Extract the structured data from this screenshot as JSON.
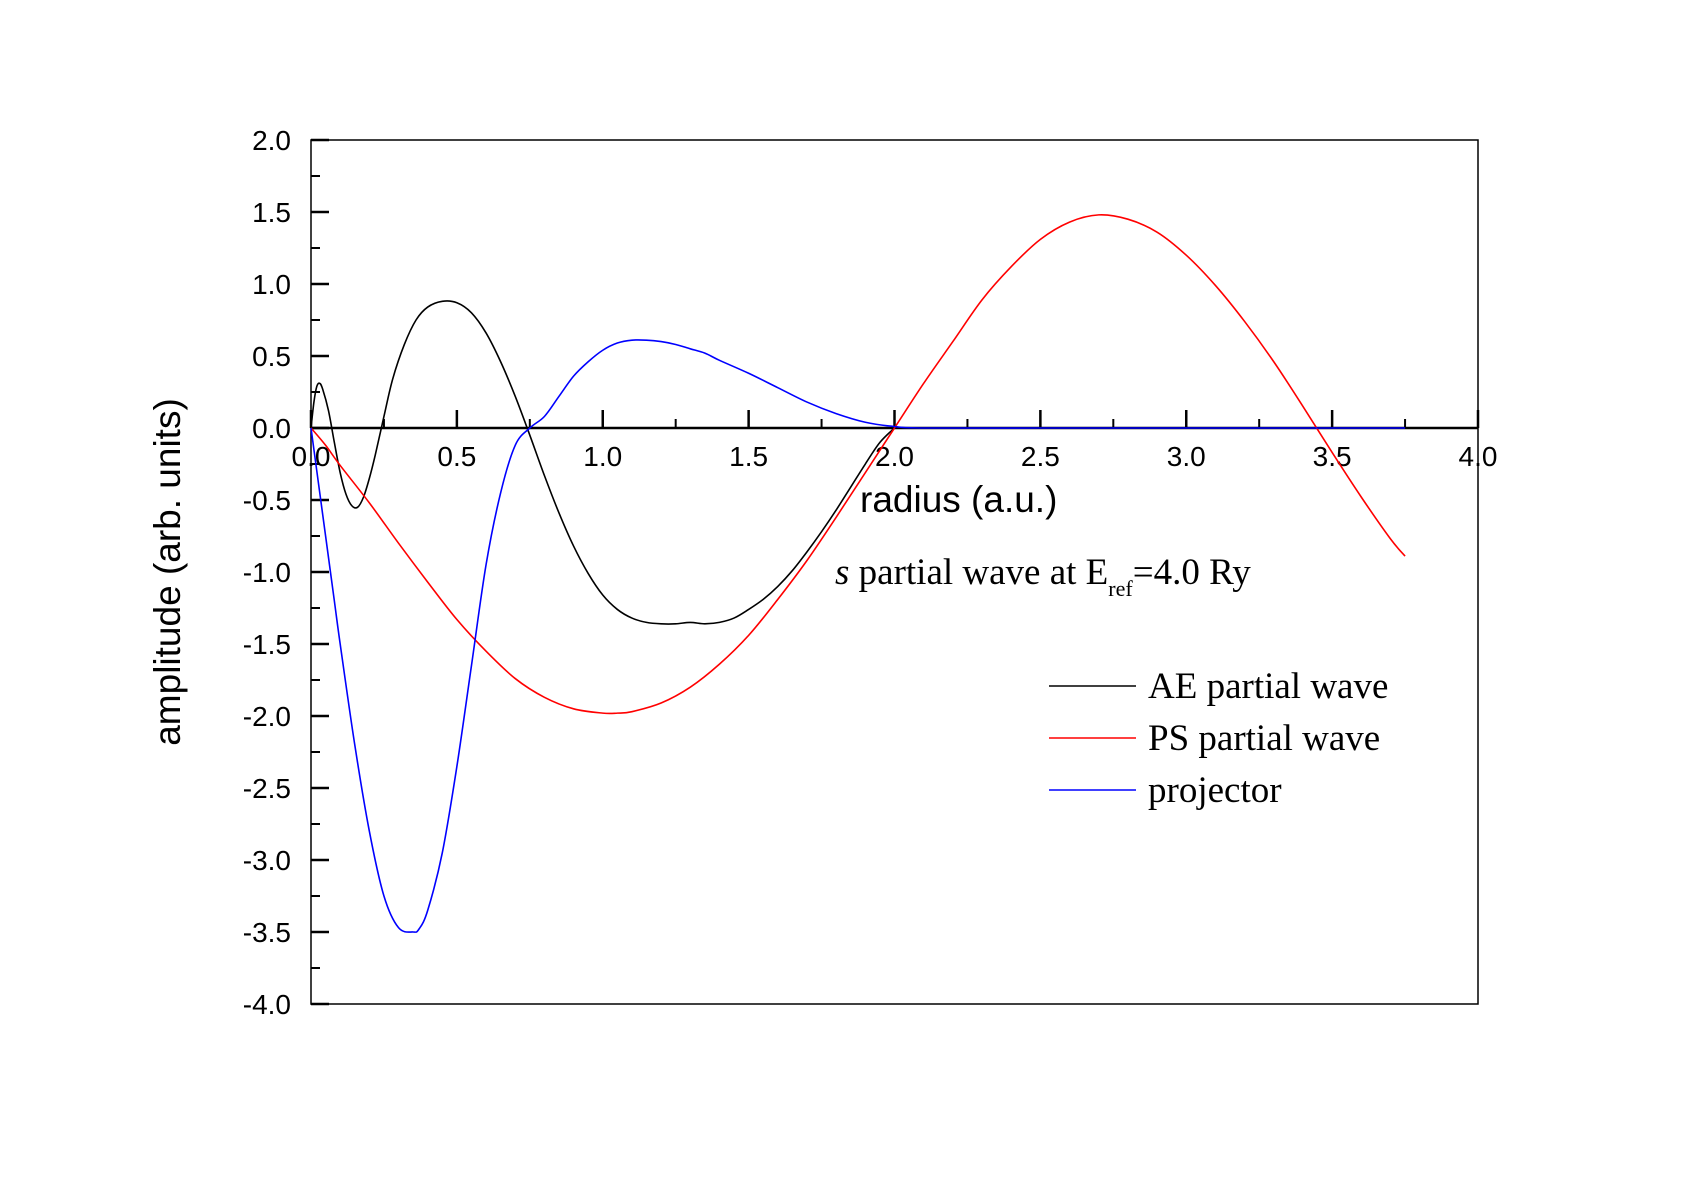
{
  "chart_data": {
    "type": "line",
    "xlabel": "radius (a.u.)",
    "ylabel": "amplitude (arb. units)",
    "xlim": [
      0.0,
      4.0
    ],
    "ylim": [
      -4.0,
      2.0
    ],
    "x_ticks": [
      "0.0",
      "0.5",
      "1.0",
      "1.5",
      "2.0",
      "2.5",
      "3.0",
      "3.5",
      "4.0"
    ],
    "y_ticks": [
      "2.0",
      "1.5",
      "1.0",
      "0.5",
      "0.0",
      "-0.5",
      "-1.0",
      "-1.5",
      "-2.0",
      "-2.5",
      "-3.0",
      "-3.5",
      "-4.0"
    ],
    "grid": false,
    "legend_position": "right",
    "annotation": {
      "prefix": "s",
      "text": " partial wave at E",
      "subscript": "ref",
      "suffix": "=4.0 Ry"
    },
    "series": [
      {
        "name": "AE partial wave",
        "color": "#000000",
        "x": [
          0.0,
          0.01,
          0.02,
          0.03,
          0.04,
          0.06,
          0.08,
          0.1,
          0.12,
          0.14,
          0.16,
          0.18,
          0.2,
          0.22,
          0.25,
          0.28,
          0.32,
          0.36,
          0.4,
          0.45,
          0.5,
          0.55,
          0.6,
          0.65,
          0.7,
          0.75,
          0.8,
          0.85,
          0.9,
          0.95,
          1.0,
          1.05,
          1.1,
          1.15,
          1.2,
          1.25,
          1.3,
          1.35,
          1.4,
          1.45,
          1.5,
          1.55,
          1.6,
          1.65,
          1.7,
          1.75,
          1.8,
          1.85,
          1.9,
          1.95,
          2.0
        ],
        "y": [
          0.0,
          0.18,
          0.29,
          0.31,
          0.27,
          0.12,
          -0.1,
          -0.31,
          -0.46,
          -0.54,
          -0.55,
          -0.48,
          -0.35,
          -0.19,
          0.08,
          0.34,
          0.58,
          0.75,
          0.84,
          0.88,
          0.87,
          0.8,
          0.66,
          0.46,
          0.22,
          -0.05,
          -0.33,
          -0.59,
          -0.82,
          -1.01,
          -1.16,
          -1.26,
          -1.32,
          -1.35,
          -1.36,
          -1.36,
          -1.35,
          -1.36,
          -1.35,
          -1.32,
          -1.26,
          -1.19,
          -1.1,
          -0.99,
          -0.86,
          -0.72,
          -0.57,
          -0.41,
          -0.25,
          -0.1,
          0.0
        ]
      },
      {
        "name": "PS partial wave",
        "color": "#ff0000",
        "x": [
          0.0,
          0.05,
          0.1,
          0.2,
          0.3,
          0.4,
          0.5,
          0.6,
          0.7,
          0.8,
          0.9,
          1.0,
          1.05,
          1.1,
          1.2,
          1.3,
          1.4,
          1.5,
          1.6,
          1.7,
          1.8,
          1.9,
          2.0,
          2.1,
          2.2,
          2.3,
          2.4,
          2.5,
          2.6,
          2.7,
          2.8,
          2.9,
          3.0,
          3.1,
          3.2,
          3.3,
          3.4,
          3.5,
          3.6,
          3.7,
          3.75
        ],
        "y": [
          0.0,
          -0.12,
          -0.26,
          -0.52,
          -0.8,
          -1.07,
          -1.33,
          -1.55,
          -1.74,
          -1.87,
          -1.95,
          -1.98,
          -1.98,
          -1.97,
          -1.91,
          -1.8,
          -1.64,
          -1.44,
          -1.19,
          -0.92,
          -0.62,
          -0.31,
          0.0,
          0.31,
          0.6,
          0.89,
          1.12,
          1.31,
          1.43,
          1.48,
          1.45,
          1.36,
          1.2,
          0.99,
          0.74,
          0.46,
          0.15,
          -0.17,
          -0.48,
          -0.77,
          -0.89
        ]
      },
      {
        "name": "projector",
        "color": "#0000ff",
        "x": [
          0.0,
          0.02,
          0.05,
          0.08,
          0.1,
          0.15,
          0.2,
          0.25,
          0.3,
          0.35,
          0.37,
          0.4,
          0.45,
          0.5,
          0.55,
          0.6,
          0.65,
          0.7,
          0.75,
          0.8,
          0.85,
          0.9,
          0.95,
          1.0,
          1.05,
          1.1,
          1.15,
          1.2,
          1.25,
          1.3,
          1.35,
          1.4,
          1.5,
          1.6,
          1.7,
          1.8,
          1.9,
          2.0,
          2.1,
          2.5,
          3.0,
          3.5,
          3.75
        ],
        "y": [
          0.0,
          -0.3,
          -0.75,
          -1.2,
          -1.5,
          -2.2,
          -2.8,
          -3.25,
          -3.47,
          -3.5,
          -3.48,
          -3.35,
          -2.95,
          -2.35,
          -1.65,
          -0.95,
          -0.45,
          -0.12,
          0.0,
          0.08,
          0.22,
          0.36,
          0.46,
          0.54,
          0.59,
          0.61,
          0.61,
          0.6,
          0.58,
          0.55,
          0.52,
          0.47,
          0.38,
          0.28,
          0.18,
          0.1,
          0.04,
          0.01,
          0.0,
          0.0,
          0.0,
          0.0,
          0.0
        ]
      }
    ]
  }
}
